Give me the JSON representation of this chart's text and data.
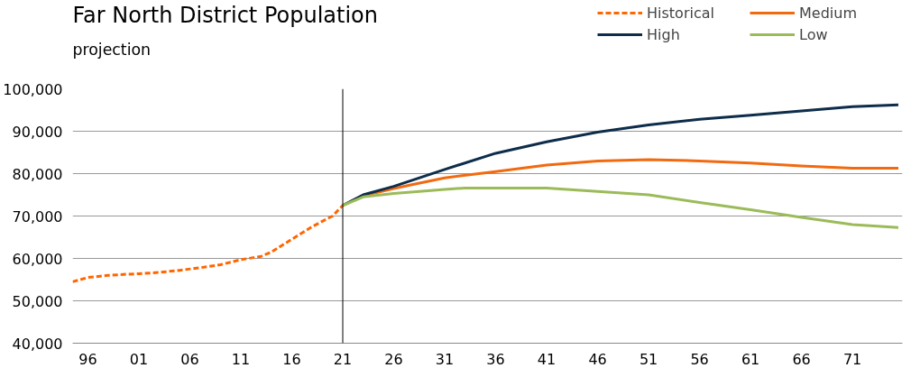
{
  "chart_data": {
    "type": "line",
    "title": "Far North District Population",
    "subtitle": "projection",
    "series": [
      {
        "name": "Historical",
        "color": "#ff6600",
        "line_style": "dashed",
        "x": [
          1994.5,
          1996,
          1998,
          2000,
          2001,
          2003,
          2005,
          2007,
          2009,
          2011,
          2013,
          2014,
          2016,
          2018,
          2020,
          2021
        ],
        "values": [
          54500,
          55500,
          56000,
          56300,
          56400,
          56700,
          57200,
          57800,
          58500,
          59700,
          60500,
          61500,
          64500,
          67500,
          70000,
          72500
        ]
      },
      {
        "name": "Medium",
        "color": "#f26a10",
        "x": [
          2021,
          2023,
          2026,
          2028,
          2031,
          2036,
          2041,
          2046,
          2051,
          2056,
          2061,
          2066,
          2071,
          2075.5
        ],
        "values": [
          72500,
          74800,
          76500,
          77500,
          79000,
          80500,
          82000,
          83000,
          83300,
          83000,
          82500,
          81800,
          81300,
          81300
        ]
      },
      {
        "name": "High",
        "color": "#0d2d4a",
        "x": [
          2021,
          2023,
          2026,
          2031,
          2036,
          2041,
          2046,
          2051,
          2056,
          2061,
          2066,
          2071,
          2075.5
        ],
        "values": [
          72500,
          75000,
          77000,
          81000,
          84800,
          87500,
          89800,
          91500,
          92800,
          93800,
          94800,
          95800,
          96200
        ]
      },
      {
        "name": "Low",
        "color": "#9bbb59",
        "x": [
          2021,
          2023,
          2026,
          2031,
          2033,
          2041,
          2046,
          2051,
          2056,
          2061,
          2066,
          2071,
          2075.5
        ],
        "values": [
          72500,
          74500,
          75300,
          76300,
          76600,
          76600,
          75800,
          75000,
          73200,
          71500,
          69700,
          68000,
          67300
        ]
      }
    ],
    "xlim": [
      1994.5,
      2075.9
    ],
    "xticks": [
      {
        "value": 1996,
        "label": "96"
      },
      {
        "value": 2001,
        "label": "01"
      },
      {
        "value": 2006,
        "label": "06"
      },
      {
        "value": 2011,
        "label": "11"
      },
      {
        "value": 2016,
        "label": "16"
      },
      {
        "value": 2021,
        "label": "21"
      },
      {
        "value": 2026,
        "label": "26"
      },
      {
        "value": 2031,
        "label": "31"
      },
      {
        "value": 2036,
        "label": "36"
      },
      {
        "value": 2041,
        "label": "41"
      },
      {
        "value": 2046,
        "label": "46"
      },
      {
        "value": 2051,
        "label": "51"
      },
      {
        "value": 2056,
        "label": "56"
      },
      {
        "value": 2061,
        "label": "61"
      },
      {
        "value": 2066,
        "label": "66"
      },
      {
        "value": 2071,
        "label": "71"
      }
    ],
    "ylim": [
      40000,
      100000
    ],
    "yticks": [
      {
        "value": 40000,
        "label": "40,000"
      },
      {
        "value": 50000,
        "label": "50,000"
      },
      {
        "value": 60000,
        "label": "60,000"
      },
      {
        "value": 70000,
        "label": "70,000"
      },
      {
        "value": 80000,
        "label": "80,000"
      },
      {
        "value": 90000,
        "label": "90,000"
      },
      {
        "value": 100000,
        "label": "100,000"
      }
    ],
    "ref_lines": [
      {
        "axis": "x",
        "value": 2021,
        "color": "#000000"
      }
    ],
    "grid": "y",
    "legend": "top right",
    "marker": "none"
  }
}
